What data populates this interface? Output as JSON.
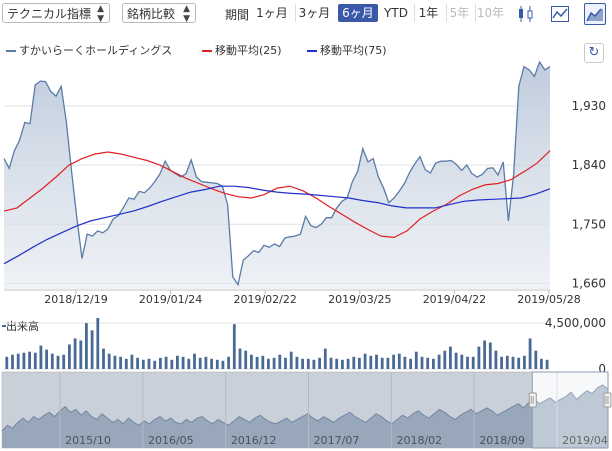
{
  "toolbar": {
    "technical_indicator": "テクニカル指標",
    "brand_compare": "銘柄比較",
    "period_label": "期間",
    "periods": [
      {
        "label": "1ヶ月",
        "state": "normal"
      },
      {
        "label": "3ヶ月",
        "state": "normal"
      },
      {
        "label": "6ヶ月",
        "state": "active"
      },
      {
        "label": "YTD",
        "state": "normal"
      },
      {
        "label": "1年",
        "state": "normal"
      },
      {
        "label": "5年",
        "state": "disabled"
      },
      {
        "label": "10年",
        "state": "disabled"
      }
    ],
    "icons": [
      "candlestick-icon",
      "line-chart-icon",
      "area-chart-icon"
    ],
    "accent": "#3a5aa9"
  },
  "legend": {
    "stock": "すかいらーくホールディングス",
    "ma25": "移動平均(25)",
    "ma75": "移動平均(75)"
  },
  "reset_icon": "↻",
  "chart_data": [
    {
      "type": "line",
      "x_ticks": [
        "2018/12/19",
        "2019/01/24",
        "2019/02/22",
        "2019/03/25",
        "2019/04/22",
        "2019/05/28"
      ],
      "y_ticks": [
        "1,930",
        "1,840",
        "1,750",
        "1,660"
      ],
      "ylim": [
        1650,
        2000
      ],
      "grid": true,
      "legend_position": "top-left",
      "colors": {
        "stock": "#5a7ba6",
        "ma25": "#e02020",
        "ma75": "#2030c8"
      },
      "series": [
        {
          "name": "すかいらーくホールディングス",
          "values": [
            1850,
            1835,
            1862,
            1878,
            1905,
            1903,
            1962,
            1968,
            1967,
            1952,
            1945,
            1960,
            1905,
            1830,
            1760,
            1698,
            1735,
            1732,
            1740,
            1737,
            1743,
            1758,
            1763,
            1776,
            1790,
            1788,
            1800,
            1798,
            1805,
            1815,
            1827,
            1846,
            1832,
            1827,
            1822,
            1827,
            1848,
            1822,
            1815,
            1814,
            1813,
            1812,
            1808,
            1780,
            1670,
            1658,
            1695,
            1702,
            1710,
            1707,
            1718,
            1715,
            1720,
            1716,
            1729,
            1731,
            1732,
            1735,
            1762,
            1748,
            1745,
            1750,
            1760,
            1760,
            1775,
            1785,
            1790,
            1815,
            1830,
            1865,
            1845,
            1850,
            1822,
            1805,
            1783,
            1790,
            1800,
            1812,
            1829,
            1842,
            1853,
            1833,
            1828,
            1843,
            1846,
            1846,
            1847,
            1841,
            1832,
            1840,
            1827,
            1822,
            1826,
            1835,
            1836,
            1825,
            1845,
            1755,
            1825,
            1960,
            1990,
            1985,
            1975,
            1997,
            1985,
            1990
          ]
        },
        {
          "name": "移動平均(25)",
          "values": [
            1770,
            1775,
            1790,
            1805,
            1822,
            1840,
            1850,
            1857,
            1860,
            1857,
            1852,
            1847,
            1840,
            1830,
            1820,
            1812,
            1804,
            1797,
            1792,
            1790,
            1795,
            1805,
            1808,
            1801,
            1790,
            1777,
            1765,
            1753,
            1742,
            1732,
            1730,
            1740,
            1758,
            1770,
            1780,
            1793,
            1803,
            1810,
            1812,
            1818,
            1830,
            1843,
            1862
          ]
        },
        {
          "name": "移動平均(75)",
          "values": [
            1690,
            1702,
            1715,
            1727,
            1737,
            1747,
            1755,
            1760,
            1765,
            1770,
            1777,
            1785,
            1792,
            1799,
            1803,
            1808,
            1808,
            1806,
            1802,
            1799,
            1797,
            1796,
            1794,
            1792,
            1790,
            1786,
            1783,
            1778,
            1775,
            1775,
            1775,
            1780,
            1785,
            1787,
            1788,
            1789,
            1790,
            1796,
            1804
          ]
        }
      ]
    },
    {
      "type": "bar",
      "title": "出来高",
      "y_ticks": [
        "4,500,000",
        "0"
      ],
      "ylim": [
        0,
        5200000
      ],
      "colors": {
        "bar": "#4a6a96"
      },
      "values": [
        1200000,
        1400000,
        1500000,
        1600000,
        1700000,
        1600000,
        2300000,
        1900000,
        1500000,
        1300000,
        1400000,
        2400000,
        3000000,
        2800000,
        4500000,
        3800000,
        5000000,
        2000000,
        1500000,
        1300000,
        1200000,
        1000000,
        1400000,
        1100000,
        900000,
        1000000,
        800000,
        1100000,
        1200000,
        900000,
        1300000,
        1200000,
        1000000,
        1500000,
        1100000,
        1200000,
        1000000,
        900000,
        800000,
        1200000,
        4400000,
        2000000,
        1800000,
        1400000,
        1200000,
        1300000,
        1000000,
        1100000,
        1400000,
        1100000,
        1700000,
        1200000,
        1000000,
        1000000,
        900000,
        1100000,
        2000000,
        1100000,
        1000000,
        900000,
        1000000,
        1200000,
        1100000,
        1500000,
        1300000,
        1400000,
        1100000,
        1100000,
        1400000,
        1500000,
        1200000,
        1000000,
        1700000,
        1200000,
        1100000,
        1000000,
        1400000,
        1800000,
        2200000,
        1600000,
        1400000,
        1200000,
        1200000,
        2200000,
        2800000,
        2600000,
        1800000,
        1200000,
        1300000,
        1200000,
        1100000,
        1300000,
        3000000,
        1800000,
        1000000,
        900000
      ]
    },
    {
      "type": "area",
      "x_ticks": [
        "2015/10",
        "2016/05",
        "2016/12",
        "2017/07",
        "2018/02",
        "2018/09",
        "2019/04"
      ],
      "colors": {
        "area": "#a9b7c9",
        "line": "#6f85a3"
      },
      "selection": {
        "start_fraction": 0.875,
        "end_fraction": 1.0
      },
      "values": [
        18,
        26,
        22,
        30,
        36,
        30,
        38,
        34,
        40,
        44,
        38,
        46,
        52,
        44,
        48,
        40,
        46,
        38,
        34,
        42,
        36,
        30,
        34,
        28,
        36,
        30,
        26,
        32,
        28,
        34,
        38,
        32,
        36,
        30,
        28,
        34,
        30,
        36,
        38,
        32,
        28,
        34,
        30,
        26,
        32,
        38,
        34,
        30,
        36,
        40,
        34,
        30,
        28,
        32,
        36,
        30,
        34,
        38,
        42,
        36,
        32,
        38,
        34,
        30,
        36,
        40,
        44,
        38,
        34,
        30,
        36,
        42,
        38,
        32,
        28,
        34,
        40,
        36,
        42,
        46,
        40,
        36,
        42,
        48,
        44,
        38,
        34,
        40,
        44,
        48,
        42,
        46,
        50,
        46,
        40,
        44,
        48,
        52,
        56,
        50,
        58,
        62,
        56,
        60,
        64,
        58,
        62,
        66,
        72,
        62,
        68,
        74,
        70,
        78,
        82,
        76
      ]
    }
  ]
}
